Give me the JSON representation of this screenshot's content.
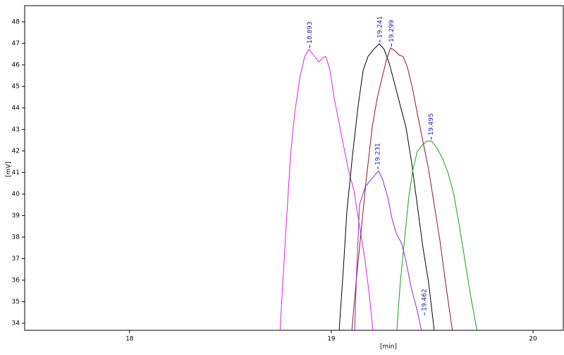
{
  "chart_data": {
    "type": "line",
    "x_label": "[min]",
    "y_label": "[mV]",
    "xlim": [
      17.48,
      20.15
    ],
    "ylim": [
      33.67,
      48.75
    ],
    "xticks": [
      18,
      19,
      20
    ],
    "yticks": [
      34,
      35,
      36,
      37,
      38,
      39,
      40,
      41,
      42,
      43,
      44,
      45,
      46,
      47,
      48
    ],
    "series": [
      {
        "color": "#e020e0",
        "x": [
          18.746,
          18.774,
          18.798,
          18.819,
          18.844,
          18.868,
          18.889,
          18.917,
          18.938,
          18.959,
          18.973,
          18.994,
          19.015,
          19.036,
          19.056,
          19.084,
          19.112,
          19.14,
          19.168,
          19.189,
          19.206
        ],
        "values": [
          33.67,
          38.2,
          41.8,
          43.77,
          45.41,
          46.39,
          46.72,
          46.39,
          46.13,
          46.33,
          46.39,
          45.74,
          44.43,
          43.44,
          42.46,
          41.15,
          40.16,
          38.52,
          36.89,
          35.25,
          33.67
        ]
      },
      {
        "color": "#000000",
        "x": [
          19.039,
          19.06,
          19.077,
          19.105,
          19.133,
          19.158,
          19.182,
          19.21,
          19.238,
          19.262,
          19.287,
          19.315,
          19.342,
          19.37,
          19.398,
          19.426,
          19.454,
          19.482,
          19.51
        ],
        "values": [
          33.67,
          36.56,
          39.18,
          41.8,
          44.1,
          45.74,
          46.39,
          46.72,
          46.98,
          46.72,
          46.07,
          45.08,
          44.1,
          43.11,
          41.48,
          39.51,
          37.54,
          35.9,
          33.67
        ]
      },
      {
        "color": "#8b1a1a",
        "x": [
          19.102,
          19.123,
          19.147,
          19.175,
          19.203,
          19.227,
          19.252,
          19.273,
          19.294,
          19.315,
          19.335,
          19.356,
          19.377,
          19.402,
          19.426,
          19.454,
          19.482,
          19.51,
          19.538,
          19.566,
          19.6
        ],
        "values": [
          33.67,
          35.9,
          38.2,
          40.82,
          43.11,
          44.43,
          45.41,
          46.23,
          46.79,
          46.66,
          46.46,
          46.39,
          45.9,
          44.92,
          43.77,
          42.46,
          41.15,
          39.51,
          37.87,
          35.9,
          33.67
        ]
      },
      {
        "color": "#8a2be2",
        "x": [
          19.116,
          19.126,
          19.14,
          19.168,
          19.196,
          19.217,
          19.234,
          19.255,
          19.28,
          19.301,
          19.321,
          19.349,
          19.37,
          19.398,
          19.426,
          19.447
        ],
        "values": [
          33.67,
          36.56,
          39.51,
          40.33,
          40.66,
          40.89,
          41.08,
          40.66,
          39.84,
          38.85,
          38.2,
          37.7,
          36.89,
          35.57,
          34.59,
          33.67
        ]
      },
      {
        "color": "#1a9a2a",
        "x": [
          19.325,
          19.342,
          19.363,
          19.384,
          19.405,
          19.426,
          19.454,
          19.475,
          19.496,
          19.524,
          19.552,
          19.579,
          19.607,
          19.635,
          19.663,
          19.691,
          19.722
        ],
        "values": [
          33.67,
          35.9,
          37.87,
          39.84,
          41.15,
          41.97,
          42.3,
          42.46,
          42.46,
          42.13,
          41.64,
          40.98,
          40.0,
          38.52,
          36.89,
          35.25,
          33.67
        ]
      }
    ],
    "annotations": [
      {
        "label": "18.893",
        "x": 18.893,
        "y": 46.72
      },
      {
        "label": "19.241",
        "x": 19.241,
        "y": 46.98
      },
      {
        "label": "19.299",
        "x": 19.299,
        "y": 46.79
      },
      {
        "label": "19.495",
        "x": 19.495,
        "y": 42.46
      },
      {
        "label": "19.231",
        "x": 19.231,
        "y": 41.08
      },
      {
        "label": "19.462",
        "x": 19.462,
        "y": 34.3
      }
    ]
  }
}
